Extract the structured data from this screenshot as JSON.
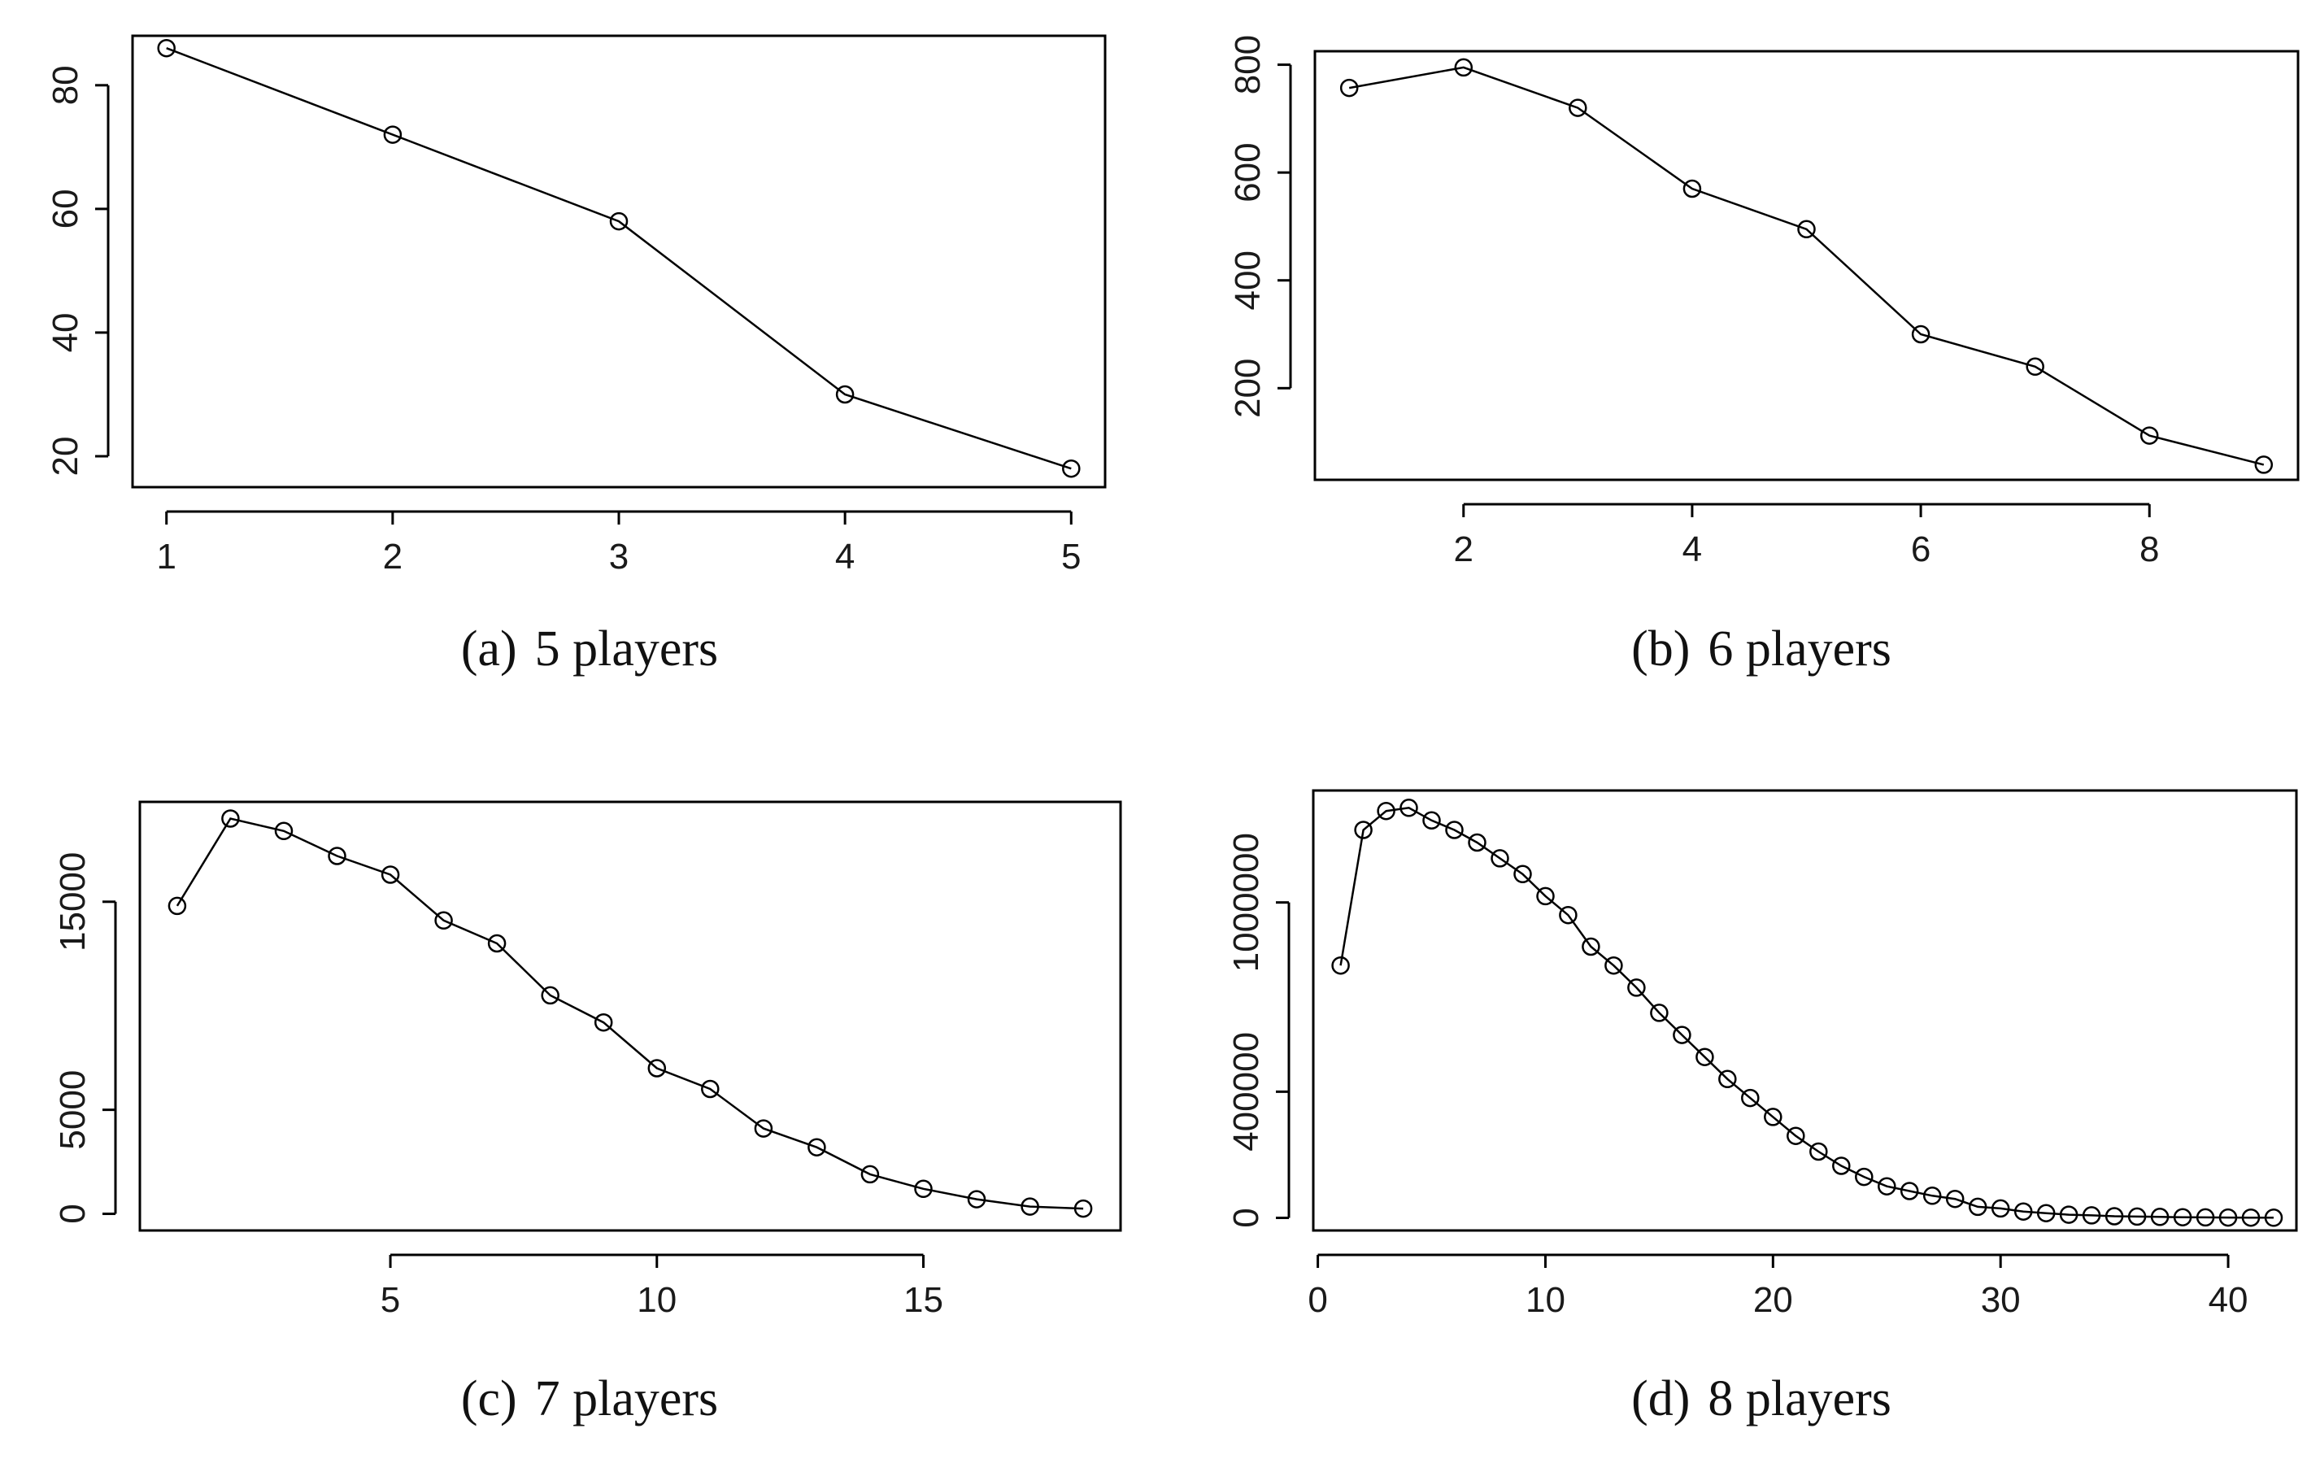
{
  "chart_data": [
    {
      "type": "line",
      "caption_label": "(a)",
      "caption_text": "5 players",
      "x": [
        1,
        2,
        3,
        4,
        5
      ],
      "y": [
        86,
        72,
        58,
        30,
        18
      ],
      "xlim": [
        0.85,
        5.15
      ],
      "ylim": [
        15,
        88
      ],
      "xticks": [
        1,
        2,
        3,
        4,
        5
      ],
      "yticks": [
        20,
        40,
        60,
        80
      ],
      "xlabel": "",
      "ylabel": "",
      "grid": false,
      "legend": "none"
    },
    {
      "type": "line",
      "caption_label": "(b)",
      "caption_text": "6 players",
      "x": [
        1,
        2,
        3,
        4,
        5,
        6,
        7,
        8,
        9
      ],
      "y": [
        757,
        795,
        720,
        570,
        495,
        300,
        240,
        112,
        58
      ],
      "xlim": [
        0.7,
        9.3
      ],
      "ylim": [
        30,
        825
      ],
      "xticks": [
        2,
        4,
        6,
        8
      ],
      "yticks": [
        200,
        400,
        600,
        800
      ],
      "xlabel": "",
      "ylabel": "",
      "grid": false,
      "legend": "none"
    },
    {
      "type": "line",
      "caption_label": "(c)",
      "caption_text": "7 players",
      "x": [
        1,
        2,
        3,
        4,
        5,
        6,
        7,
        8,
        9,
        10,
        11,
        12,
        13,
        14,
        15,
        16,
        17,
        18
      ],
      "y": [
        14800,
        19000,
        18400,
        17200,
        16300,
        14100,
        13000,
        10500,
        9200,
        7000,
        6000,
        4100,
        3200,
        1900,
        1200,
        700,
        350,
        250
      ],
      "xlim": [
        0.3,
        18.7
      ],
      "ylim": [
        -800,
        19800
      ],
      "xticks": [
        5,
        10,
        15
      ],
      "yticks": [
        0,
        5000,
        15000
      ],
      "xlabel": "",
      "ylabel": "",
      "grid": false,
      "legend": "none"
    },
    {
      "type": "line",
      "caption_label": "(d)",
      "caption_text": "8 players",
      "x": [
        1,
        2,
        3,
        4,
        5,
        6,
        7,
        8,
        9,
        10,
        11,
        12,
        13,
        14,
        15,
        16,
        17,
        18,
        19,
        20,
        21,
        22,
        23,
        24,
        25,
        26,
        27,
        28,
        29,
        30,
        31,
        32,
        33,
        34,
        35,
        36,
        37,
        38,
        39,
        40,
        41,
        42
      ],
      "y": [
        800000,
        1230000,
        1290000,
        1300000,
        1260000,
        1230000,
        1190000,
        1140000,
        1090000,
        1020000,
        960000,
        860000,
        800000,
        730000,
        650000,
        580000,
        510000,
        440000,
        380000,
        320000,
        260000,
        210000,
        165000,
        130000,
        100000,
        85000,
        70000,
        60000,
        35000,
        30000,
        20000,
        15000,
        10000,
        8000,
        5000,
        4000,
        3000,
        2000,
        1500,
        1000,
        800,
        500
      ],
      "xlim": [
        -0.2,
        43
      ],
      "ylim": [
        -40000,
        1355000
      ],
      "xticks": [
        0,
        10,
        20,
        30,
        40
      ],
      "yticks": [
        0,
        400000,
        1000000
      ],
      "xlabel": "",
      "ylabel": "",
      "grid": false,
      "legend": "none"
    }
  ]
}
